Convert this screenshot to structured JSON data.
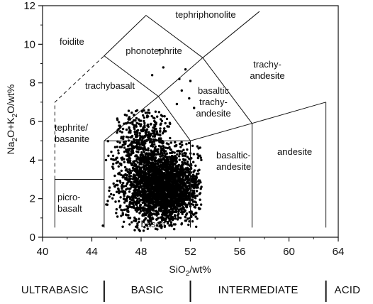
{
  "chart_data": {
    "type": "scatter",
    "title": "",
    "xlabel": "SiO2/wt%",
    "ylabel": "Na2O+K2O/wt%",
    "xlim": [
      40,
      64
    ],
    "ylim": [
      0,
      12
    ],
    "xticks": [
      "40",
      "44",
      "48",
      "52",
      "56",
      "60",
      "64"
    ],
    "yticks": [
      "0",
      "2",
      "4",
      "6",
      "8",
      "10",
      "12"
    ],
    "grid": false,
    "fields": [
      {
        "id": "foidite",
        "lines": [
          "foidite"
        ]
      },
      {
        "id": "tephriphonolite",
        "lines": [
          "tephriphonolite"
        ]
      },
      {
        "id": "phonotephrite",
        "lines": [
          "phonotephrite"
        ]
      },
      {
        "id": "trachyandesite",
        "lines": [
          "trachy-",
          "andesite"
        ]
      },
      {
        "id": "trachybasalt",
        "lines": [
          "trachybasalt"
        ]
      },
      {
        "id": "basaltic-trachyandesite",
        "lines": [
          "basaltic",
          "trachy-",
          "andesite"
        ]
      },
      {
        "id": "tephrite-basanite",
        "lines": [
          "tephrite/",
          "basanite"
        ]
      },
      {
        "id": "basaltic-andesite",
        "lines": [
          "basaltic-",
          "andesite"
        ]
      },
      {
        "id": "andesite",
        "lines": [
          "andesite"
        ]
      },
      {
        "id": "picrobasalt",
        "lines": [
          "picro-",
          "basalt"
        ]
      },
      {
        "id": "basalt",
        "lines": [
          "basalt"
        ]
      }
    ],
    "boundaries": [
      {
        "style": "solid",
        "points": [
          [
            41,
            0.5
          ],
          [
            41,
            3
          ],
          [
            45,
            3
          ]
        ]
      },
      {
        "style": "solid",
        "points": [
          [
            45,
            0.5
          ],
          [
            45,
            5
          ]
        ]
      },
      {
        "style": "solid",
        "points": [
          [
            45,
            5
          ],
          [
            49.4,
            7.3
          ],
          [
            53,
            9.3
          ],
          [
            57.6,
            11.7
          ]
        ]
      },
      {
        "style": "solid",
        "points": [
          [
            45,
            5
          ],
          [
            52,
            5
          ],
          [
            57,
            5.9
          ],
          [
            63,
            7
          ]
        ]
      },
      {
        "style": "solid",
        "points": [
          [
            52,
            0.5
          ],
          [
            52,
            5
          ]
        ]
      },
      {
        "style": "solid",
        "points": [
          [
            57,
            0.5
          ],
          [
            57,
            5.9
          ]
        ]
      },
      {
        "style": "solid",
        "points": [
          [
            63,
            0.5
          ],
          [
            63,
            7
          ]
        ]
      },
      {
        "style": "solid",
        "points": [
          [
            52,
            5
          ],
          [
            49.4,
            7.3
          ],
          [
            45,
            9.4
          ],
          [
            48.4,
            11.5
          ],
          [
            53,
            9.3
          ]
        ]
      },
      {
        "style": "solid",
        "points": [
          [
            53,
            9.3
          ],
          [
            57,
            5.9
          ]
        ]
      },
      {
        "style": "dashed",
        "points": [
          [
            41,
            3
          ],
          [
            41,
            7
          ],
          [
            45,
            9.4
          ]
        ]
      }
    ],
    "groups": [
      {
        "id": "cluster-main",
        "center": [
          49.8,
          2.6
        ],
        "spread": [
          1.5,
          0.9
        ],
        "count": 2600
      },
      {
        "id": "cluster-upper",
        "center": [
          48.0,
          5.0
        ],
        "spread": [
          0.9,
          0.9
        ],
        "count": 300
      },
      {
        "id": "scatter-wide",
        "center": [
          48.8,
          4.2
        ],
        "spread": [
          2.0,
          1.8
        ],
        "count": 350
      }
    ],
    "outliers": [
      [
        49.8,
        8.8
      ],
      [
        48.9,
        8.4
      ],
      [
        51.6,
        8.7
      ],
      [
        51.3,
        7.6
      ],
      [
        52.0,
        8.1
      ],
      [
        51.1,
        8.2
      ],
      [
        51.9,
        7.2
      ],
      [
        49.5,
        9.7
      ],
      [
        52.3,
        6.7
      ],
      [
        50.9,
        6.9
      ],
      [
        46.6,
        0.8
      ],
      [
        44.9,
        0.6
      ]
    ],
    "composition_bands": {
      "labels": [
        "ULTRABASIC",
        "BASIC",
        "INTERMEDIATE",
        "ACID"
      ],
      "boundaries": [
        45,
        52,
        63
      ]
    }
  }
}
